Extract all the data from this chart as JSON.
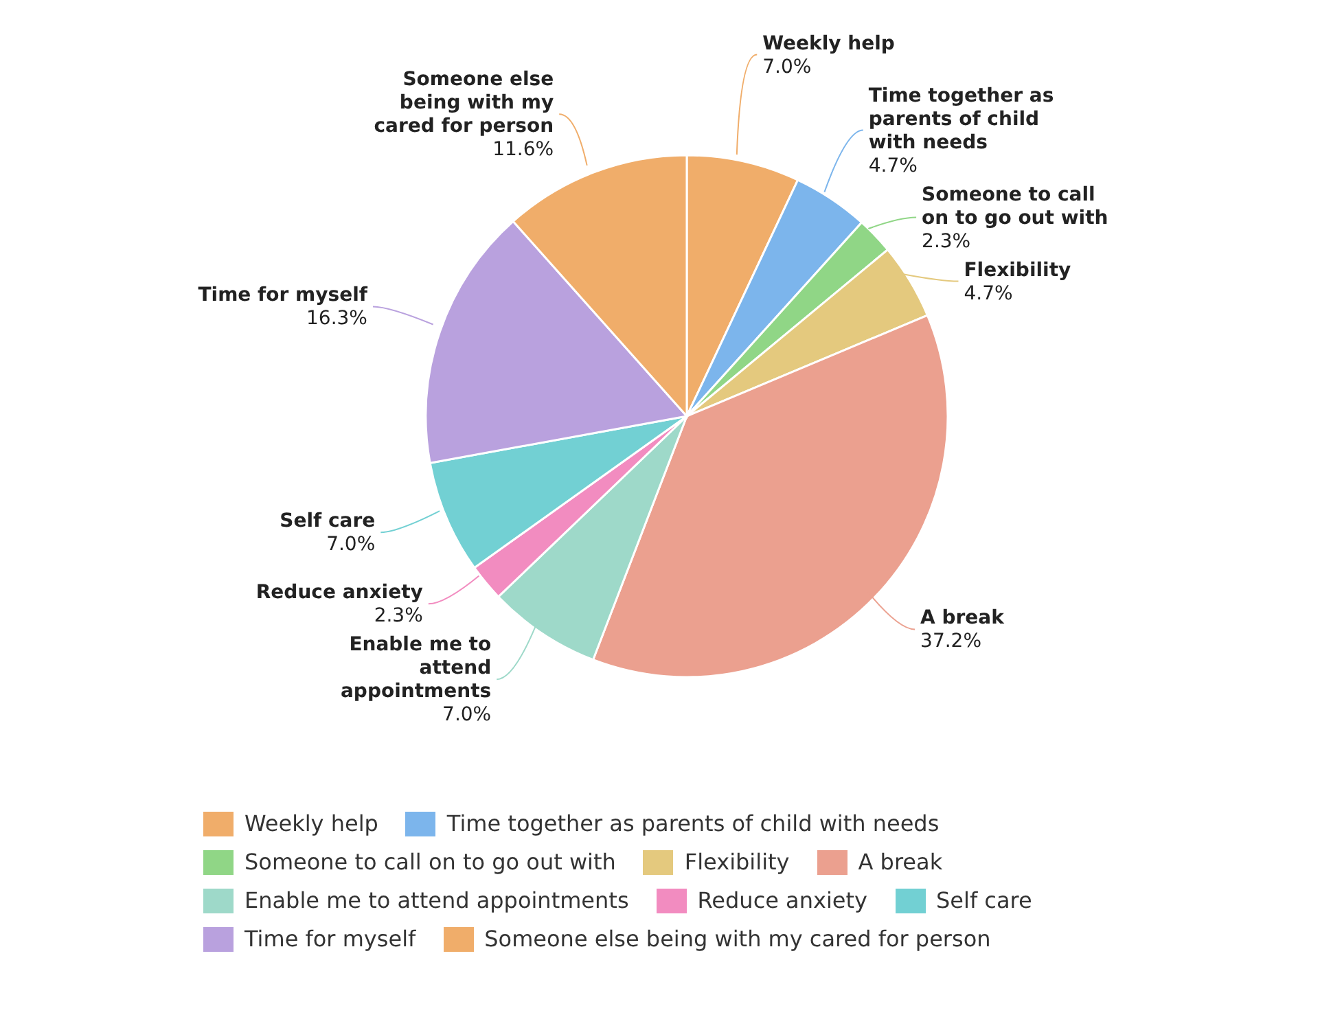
{
  "chart_data": {
    "type": "pie",
    "categories": [
      "Weekly help",
      "Time together as parents of child with needs",
      "Someone to call on to go out with",
      "Flexibility",
      "A break",
      "Enable me to attend appointments",
      "Reduce anxiety",
      "Self care",
      "Time for myself",
      "Someone else being with my cared for person"
    ],
    "values": [
      7.0,
      4.7,
      2.3,
      4.7,
      37.2,
      7.0,
      2.3,
      7.0,
      16.3,
      11.6
    ],
    "colors": [
      "#f0ad6a",
      "#7cb5ec",
      "#90d686",
      "#e4c97e",
      "#eba08f",
      "#9ed9c9",
      "#f28cc0",
      "#72d0d3",
      "#b9a1de",
      "#f0ad6a"
    ],
    "value_labels": [
      "7.0%",
      "4.7%",
      "2.3%",
      "4.7%",
      "37.2%",
      "7.0%",
      "2.3%",
      "7.0%",
      "16.3%",
      "11.6%"
    ],
    "legend": "bottom"
  }
}
